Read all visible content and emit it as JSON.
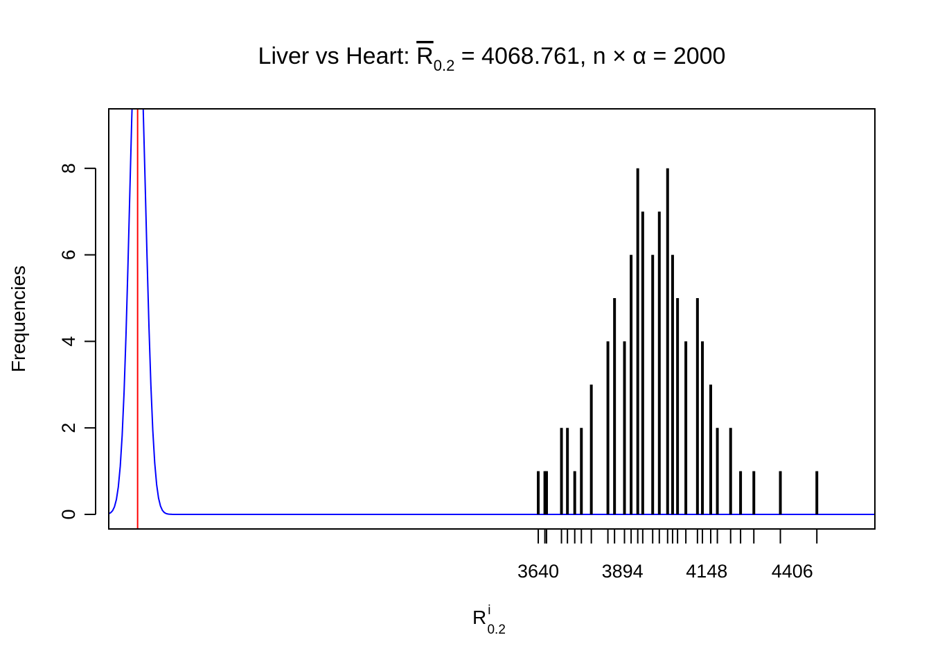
{
  "chart_data": {
    "type": "bar",
    "title": {
      "left": "Liver vs Heart: ",
      "symbol": "R",
      "subscript": "0.2",
      "right": " = 4068.761, n × α = 2000"
    },
    "xlabel": {
      "symbol": "R",
      "superscript": "i",
      "subscript": "0.2"
    },
    "ylabel": "Frequencies",
    "ylim": [
      0,
      9
    ],
    "yticks": [
      0,
      2,
      4,
      6,
      8
    ],
    "xlim": [
      2345,
      4655
    ],
    "xtick_labels": [
      3640,
      3894,
      4148,
      4406
    ],
    "grid": false,
    "legend": "none",
    "colors": {
      "bars": "#000000",
      "density_curve": "#0000ff",
      "reference_line": "#ff0000"
    },
    "reference_line_x": 2432,
    "density_curve": {
      "mean": 2432,
      "sd": 24,
      "peak": 12.0
    },
    "bar_values": [
      1,
      1,
      1,
      2,
      2,
      1,
      2,
      3,
      4,
      5,
      4,
      6,
      8,
      7,
      6,
      7,
      8,
      6,
      5,
      4,
      5,
      4,
      3,
      2,
      2,
      1,
      1,
      1,
      1
    ],
    "bar_positions": [
      3640,
      3660,
      3665,
      3710,
      3728,
      3750,
      3770,
      3800,
      3850,
      3870,
      3900,
      3920,
      3940,
      3955,
      3985,
      4005,
      4030,
      4045,
      4060,
      4085,
      4120,
      4135,
      4160,
      4180,
      4220,
      4250,
      4290,
      4370,
      4480
    ]
  }
}
